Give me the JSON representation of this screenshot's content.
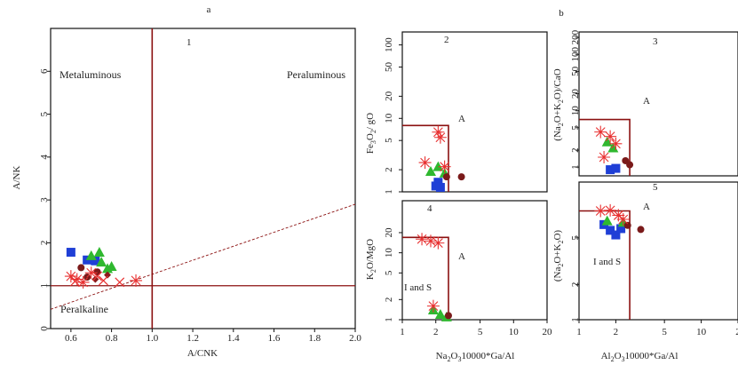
{
  "figure": {
    "label_a": "a",
    "label_b": "b",
    "axis_label_a_cnk": "A/CNK",
    "axis_label_a_nk": "A/NK",
    "axis_label_ga_al_1": "Na2O310000*Ga/Al",
    "axis_label_ga_al_2": "Al2O310000*Ga/Al",
    "panels": [
      "1",
      "2",
      "3",
      "4",
      "5"
    ],
    "region_labels": {
      "metaluminous": "Metaluminous",
      "peraluminous": "Peraluminous",
      "peralkaline": "Peralkaline",
      "a_type": "A",
      "i_and_s": "I and S"
    }
  },
  "chart_data": [
    {
      "panel": "1",
      "type": "scatter",
      "xlabel": "A/CNK",
      "ylabel": "A/NK",
      "xlim": [
        0.5,
        2.0
      ],
      "ylim": [
        0,
        7
      ],
      "xticks": [
        "0.6",
        "0.8",
        "1.0",
        "1.2",
        "1.4",
        "1.6",
        "1.8",
        "2.0"
      ],
      "yticks": [
        "0",
        "1",
        "2",
        "3",
        "4",
        "5",
        "6"
      ],
      "regions": [
        "Metaluminous",
        "Peraluminous",
        "Peralkaline"
      ],
      "boundaries": {
        "vertical_x": 1.0,
        "horizontal_y": 1.0
      },
      "series": [
        {
          "marker": "square",
          "color": "#1f3fd6",
          "points": [
            [
              0.6,
              1.78
            ],
            [
              0.68,
              1.6
            ],
            [
              0.72,
              1.58
            ]
          ]
        },
        {
          "marker": "triangle",
          "color": "#2fb82f",
          "points": [
            [
              0.7,
              1.7
            ],
            [
              0.75,
              1.55
            ],
            [
              0.78,
              1.4
            ],
            [
              0.74,
              1.78
            ],
            [
              0.8,
              1.45
            ]
          ]
        },
        {
          "marker": "circle",
          "color": "#7a1a1a",
          "points": [
            [
              0.65,
              1.42
            ],
            [
              0.68,
              1.2
            ],
            [
              0.73,
              1.32
            ]
          ]
        },
        {
          "marker": "diamond",
          "color": "#8b1a1a",
          "points": [
            [
              0.72,
              1.15
            ],
            [
              0.78,
              1.25
            ]
          ]
        },
        {
          "marker": "asterisk",
          "color": "#e83030",
          "points": [
            [
              0.6,
              1.22
            ],
            [
              0.63,
              1.15
            ],
            [
              0.66,
              1.08
            ],
            [
              0.7,
              1.3
            ],
            [
              0.92,
              1.12
            ]
          ]
        },
        {
          "marker": "cross",
          "color": "#e83030",
          "points": [
            [
              0.62,
              1.1
            ],
            [
              0.76,
              1.12
            ],
            [
              0.84,
              1.08
            ],
            [
              0.73,
              1.22
            ]
          ]
        }
      ]
    },
    {
      "panel": "2",
      "type": "scatter",
      "ylabel": "Fe3O2/gO",
      "xscale": "log",
      "yscale": "log",
      "xlim": [
        1,
        20
      ],
      "ylim": [
        1,
        150
      ],
      "yticks": [
        "1",
        "2",
        "5",
        "10",
        "20",
        "50",
        "100"
      ],
      "regions": [
        "A"
      ],
      "region_box": {
        "xmax": 2.6,
        "ymin": 1,
        "ymax": 8
      },
      "series": [
        {
          "marker": "square",
          "color": "#1f3fd6",
          "points": [
            [
              2.0,
              1.2
            ],
            [
              2.1,
              1.35
            ],
            [
              2.2,
              1.15
            ]
          ]
        },
        {
          "marker": "triangle",
          "color": "#2fb82f",
          "points": [
            [
              1.8,
              1.9
            ],
            [
              2.1,
              2.2
            ],
            [
              2.4,
              1.8
            ]
          ]
        },
        {
          "marker": "circle",
          "color": "#7a1a1a",
          "points": [
            [
              2.5,
              1.6
            ],
            [
              3.4,
              1.6
            ]
          ]
        },
        {
          "marker": "asterisk",
          "color": "#e83030",
          "points": [
            [
              2.1,
              6.5
            ],
            [
              2.2,
              5.5
            ],
            [
              1.6,
              2.5
            ],
            [
              2.4,
              2.2
            ]
          ]
        }
      ]
    },
    {
      "panel": "3",
      "type": "scatter",
      "ylabel": "(Na2O+K2O)/CaO",
      "xscale": "log",
      "yscale": "log",
      "xlim": [
        1,
        20
      ],
      "ylim": [
        0.7,
        250
      ],
      "yticks": [
        "1",
        "2",
        "5",
        "10",
        "20",
        "50",
        "100",
        "200"
      ],
      "regions": [
        "A"
      ],
      "region_box": {
        "xmax": 2.6,
        "ymin": 0.7,
        "ymax": 7
      },
      "series": [
        {
          "marker": "square",
          "color": "#1f3fd6",
          "points": [
            [
              1.8,
              0.9
            ],
            [
              2.0,
              0.95
            ]
          ]
        },
        {
          "marker": "triangle",
          "color": "#2fb82f",
          "points": [
            [
              1.7,
              2.8
            ],
            [
              1.9,
              2.2
            ]
          ]
        },
        {
          "marker": "circle",
          "color": "#7a1a1a",
          "points": [
            [
              2.4,
              1.3
            ],
            [
              2.6,
              1.1
            ]
          ]
        },
        {
          "marker": "asterisk",
          "color": "#e83030",
          "points": [
            [
              1.5,
              4.2
            ],
            [
              1.8,
              3.5
            ],
            [
              2.0,
              2.6
            ],
            [
              1.6,
              1.5
            ]
          ]
        }
      ]
    },
    {
      "panel": "4",
      "type": "scatter",
      "ylabel": "K2O/MgO",
      "xscale": "log",
      "yscale": "log",
      "xlim": [
        1,
        20
      ],
      "ylim": [
        1,
        60
      ],
      "xticks": [
        "1",
        "2",
        "5",
        "10",
        "20"
      ],
      "yticks": [
        "1",
        "2",
        "5",
        "10",
        "20"
      ],
      "xlabel": "Na2O310000*Ga/Al",
      "regions": [
        "A",
        "I and S"
      ],
      "region_box": {
        "xmax": 2.6,
        "ymin": 1,
        "ymax": 17
      },
      "series": [
        {
          "marker": "triangle",
          "color": "#2fb82f",
          "points": [
            [
              1.9,
              1.4
            ],
            [
              2.2,
              1.2
            ],
            [
              2.5,
              1.1
            ]
          ]
        },
        {
          "marker": "circle",
          "color": "#7a1a1a",
          "points": [
            [
              2.6,
              1.15
            ]
          ]
        },
        {
          "marker": "asterisk",
          "color": "#e83030",
          "points": [
            [
              1.5,
              16
            ],
            [
              1.8,
              15
            ],
            [
              2.1,
              14
            ],
            [
              1.9,
              1.6
            ]
          ]
        }
      ]
    },
    {
      "panel": "5",
      "type": "scatter",
      "ylabel": "(Na2O+K2O)",
      "xscale": "log",
      "yscale": "log",
      "xlim": [
        1,
        20
      ],
      "ylim": [
        1,
        15
      ],
      "xticks": [
        "1",
        "2",
        "5",
        "10",
        "2"
      ],
      "yticks": [
        "1",
        "2",
        "5"
      ],
      "xlabel": "Al2O310000*Ga/Al",
      "regions": [
        "A",
        "I and S"
      ],
      "region_box": {
        "xmax": 2.6,
        "ymin": 1,
        "ymax": 8.5
      },
      "series": [
        {
          "marker": "square",
          "color": "#1f3fd6",
          "points": [
            [
              1.6,
              6.5
            ],
            [
              1.8,
              5.8
            ],
            [
              2.0,
              5.3
            ],
            [
              2.2,
              6.0
            ]
          ]
        },
        {
          "marker": "triangle",
          "color": "#2fb82f",
          "points": [
            [
              1.7,
              7.0
            ],
            [
              2.3,
              6.8
            ]
          ]
        },
        {
          "marker": "circle",
          "color": "#7a1a1a",
          "points": [
            [
              2.5,
              6.4
            ],
            [
              3.2,
              5.9
            ]
          ]
        },
        {
          "marker": "asterisk",
          "color": "#e83030",
          "points": [
            [
              1.5,
              8.5
            ],
            [
              1.8,
              8.6
            ],
            [
              2.1,
              7.8
            ],
            [
              2.3,
              7.2
            ]
          ]
        }
      ]
    }
  ]
}
